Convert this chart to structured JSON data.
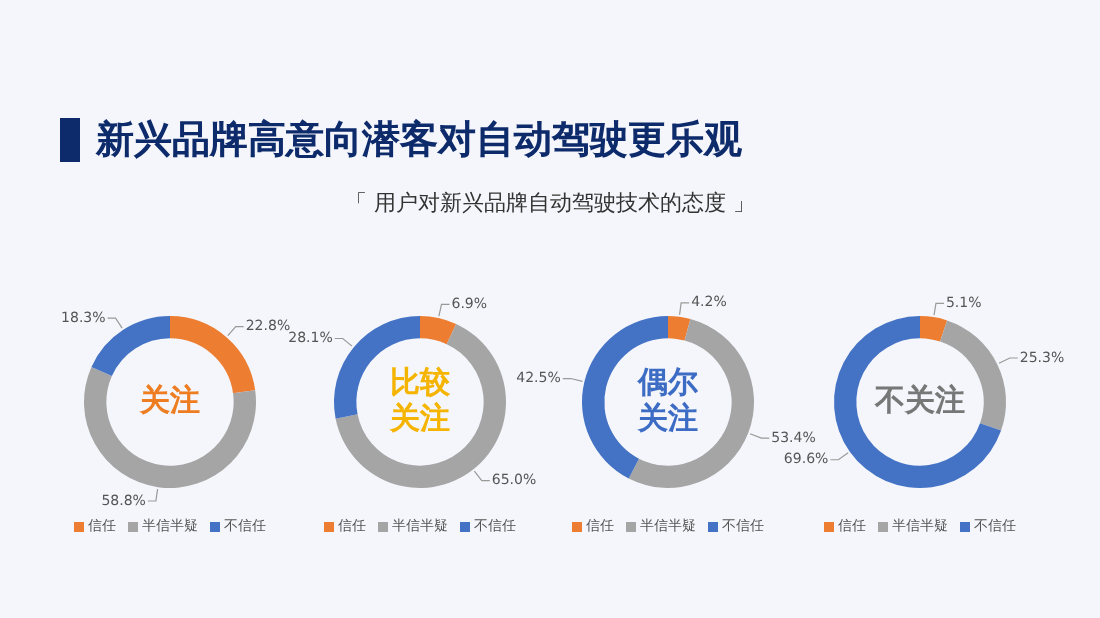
{
  "chart_data": [
    {
      "type": "donut",
      "title": "新兴品牌高意向潜客对自动驾驶更乐观",
      "subtitle": "「 用户对新兴品牌自动驾驶技术的态度 」",
      "annotations": [
        "关注"
      ],
      "categories": [
        "信任",
        "半信半疑",
        "不信任"
      ],
      "values": [
        22.8,
        58.8,
        18.3
      ],
      "value_labels": [
        "22.8%",
        "58.8%",
        "18.3%"
      ],
      "colors": [
        "#ed7d31",
        "#a5a5a5",
        "#4472c4"
      ],
      "legend": "bottom"
    },
    {
      "type": "donut",
      "annotations": [
        "比较关注"
      ],
      "categories": [
        "信任",
        "半信半疑",
        "不信任"
      ],
      "values": [
        6.9,
        65.0,
        28.1
      ],
      "value_labels": [
        "6.9%",
        "65.0%",
        "28.1%"
      ],
      "colors": [
        "#ed7d31",
        "#a5a5a5",
        "#4472c4"
      ],
      "legend": "bottom"
    },
    {
      "type": "donut",
      "annotations": [
        "偶尔关注"
      ],
      "categories": [
        "信任",
        "半信半疑",
        "不信任"
      ],
      "values": [
        4.2,
        53.4,
        42.5
      ],
      "value_labels": [
        "4.2%",
        "53.4%",
        "42.5%"
      ],
      "colors": [
        "#ed7d31",
        "#a5a5a5",
        "#4472c4"
      ],
      "legend": "bottom"
    },
    {
      "type": "donut",
      "annotations": [
        "不关注"
      ],
      "categories": [
        "信任",
        "半信半疑",
        "不信任"
      ],
      "values": [
        5.1,
        25.3,
        69.6
      ],
      "value_labels": [
        "5.1%",
        "25.3%",
        "69.6%"
      ],
      "colors": [
        "#ed7d31",
        "#a5a5a5",
        "#4472c4"
      ],
      "legend": "bottom"
    }
  ]
}
